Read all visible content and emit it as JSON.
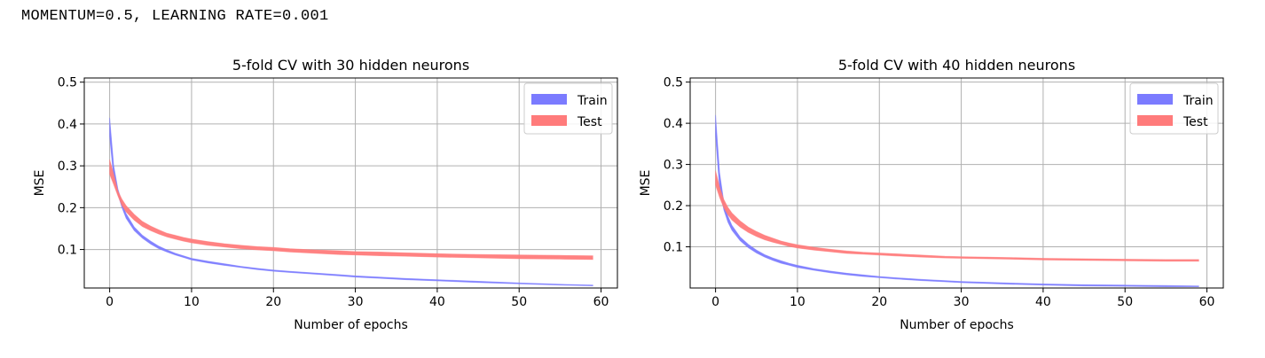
{
  "page": {
    "heading": "MOMENTUM=0.5, LEARNING RATE=0.001"
  },
  "chart_data": [
    {
      "type": "area",
      "title": "5-fold CV with 30 hidden neurons",
      "xlabel": "Number of epochs",
      "ylabel": "MSE",
      "xlim": [
        -3.1,
        62
      ],
      "ylim": [
        0.008,
        0.51
      ],
      "xticks": [
        0,
        10,
        20,
        30,
        40,
        50,
        60
      ],
      "yticks": [
        0.1,
        0.2,
        0.3,
        0.4,
        0.5
      ],
      "grid": true,
      "legend_position": "top-right",
      "x": [
        0,
        0.5,
        1,
        1.5,
        2,
        3,
        4,
        5,
        6,
        7,
        8,
        9,
        10,
        12,
        14,
        16,
        18,
        20,
        22,
        25,
        28,
        30,
        33,
        36,
        40,
        45,
        50,
        55,
        59
      ],
      "series": [
        {
          "name": "Train",
          "color": "#7b7bff",
          "lower": [
            0.37,
            0.27,
            0.232,
            0.2,
            0.175,
            0.145,
            0.127,
            0.113,
            0.102,
            0.094,
            0.087,
            0.081,
            0.075,
            0.068,
            0.062,
            0.057,
            0.052,
            0.048,
            0.045,
            0.041,
            0.037,
            0.034,
            0.031,
            0.028,
            0.025,
            0.021,
            0.018,
            0.015,
            0.013
          ],
          "upper": [
            0.415,
            0.3,
            0.245,
            0.212,
            0.186,
            0.154,
            0.134,
            0.12,
            0.108,
            0.099,
            0.091,
            0.085,
            0.079,
            0.072,
            0.066,
            0.06,
            0.055,
            0.051,
            0.048,
            0.044,
            0.04,
            0.037,
            0.034,
            0.031,
            0.028,
            0.024,
            0.02,
            0.017,
            0.015
          ]
        },
        {
          "name": "Test",
          "color": "#ff7b7b",
          "lower": [
            0.28,
            0.255,
            0.228,
            0.205,
            0.19,
            0.17,
            0.155,
            0.145,
            0.137,
            0.13,
            0.125,
            0.12,
            0.116,
            0.11,
            0.106,
            0.102,
            0.099,
            0.097,
            0.094,
            0.091,
            0.088,
            0.087,
            0.085,
            0.084,
            0.082,
            0.08,
            0.078,
            0.077,
            0.076
          ],
          "upper": [
            0.315,
            0.28,
            0.24,
            0.22,
            0.205,
            0.184,
            0.167,
            0.156,
            0.147,
            0.139,
            0.134,
            0.129,
            0.125,
            0.119,
            0.114,
            0.11,
            0.107,
            0.105,
            0.102,
            0.099,
            0.097,
            0.095,
            0.094,
            0.092,
            0.09,
            0.088,
            0.087,
            0.086,
            0.085
          ]
        }
      ]
    },
    {
      "type": "area",
      "title": "5-fold CV with 40 hidden neurons",
      "xlabel": "Number of epochs",
      "ylabel": "MSE",
      "xlim": [
        -3.1,
        62
      ],
      "ylim": [
        0.0,
        0.51
      ],
      "xticks": [
        0,
        10,
        20,
        30,
        40,
        50,
        60
      ],
      "yticks": [
        0.1,
        0.2,
        0.3,
        0.4,
        0.5
      ],
      "grid": true,
      "legend_position": "top-right",
      "x": [
        0,
        0.5,
        1,
        1.5,
        2,
        3,
        4,
        5,
        6,
        7,
        8,
        9,
        10,
        12,
        14,
        16,
        18,
        20,
        22,
        25,
        28,
        30,
        33,
        36,
        40,
        45,
        50,
        55,
        59
      ],
      "series": [
        {
          "name": "Train",
          "color": "#7b7bff",
          "lower": [
            0.37,
            0.24,
            0.19,
            0.16,
            0.14,
            0.115,
            0.098,
            0.085,
            0.075,
            0.067,
            0.06,
            0.055,
            0.05,
            0.043,
            0.037,
            0.032,
            0.028,
            0.025,
            0.022,
            0.018,
            0.015,
            0.013,
            0.011,
            0.009,
            0.007,
            0.005,
            0.004,
            0.003,
            0.003
          ],
          "upper": [
            0.42,
            0.28,
            0.21,
            0.175,
            0.152,
            0.124,
            0.106,
            0.092,
            0.081,
            0.073,
            0.066,
            0.06,
            0.055,
            0.047,
            0.041,
            0.036,
            0.032,
            0.028,
            0.025,
            0.021,
            0.018,
            0.016,
            0.014,
            0.012,
            0.01,
            0.008,
            0.007,
            0.006,
            0.005
          ]
        },
        {
          "name": "Test",
          "color": "#ff7b7b",
          "lower": [
            0.25,
            0.22,
            0.195,
            0.178,
            0.165,
            0.148,
            0.135,
            0.125,
            0.117,
            0.111,
            0.106,
            0.101,
            0.097,
            0.092,
            0.088,
            0.084,
            0.082,
            0.08,
            0.078,
            0.075,
            0.073,
            0.072,
            0.071,
            0.07,
            0.068,
            0.067,
            0.066,
            0.065,
            0.065
          ],
          "upper": [
            0.285,
            0.245,
            0.215,
            0.196,
            0.182,
            0.163,
            0.148,
            0.137,
            0.128,
            0.121,
            0.114,
            0.109,
            0.105,
            0.099,
            0.094,
            0.09,
            0.087,
            0.085,
            0.083,
            0.08,
            0.077,
            0.076,
            0.075,
            0.074,
            0.072,
            0.071,
            0.07,
            0.069,
            0.069
          ]
        }
      ]
    }
  ]
}
